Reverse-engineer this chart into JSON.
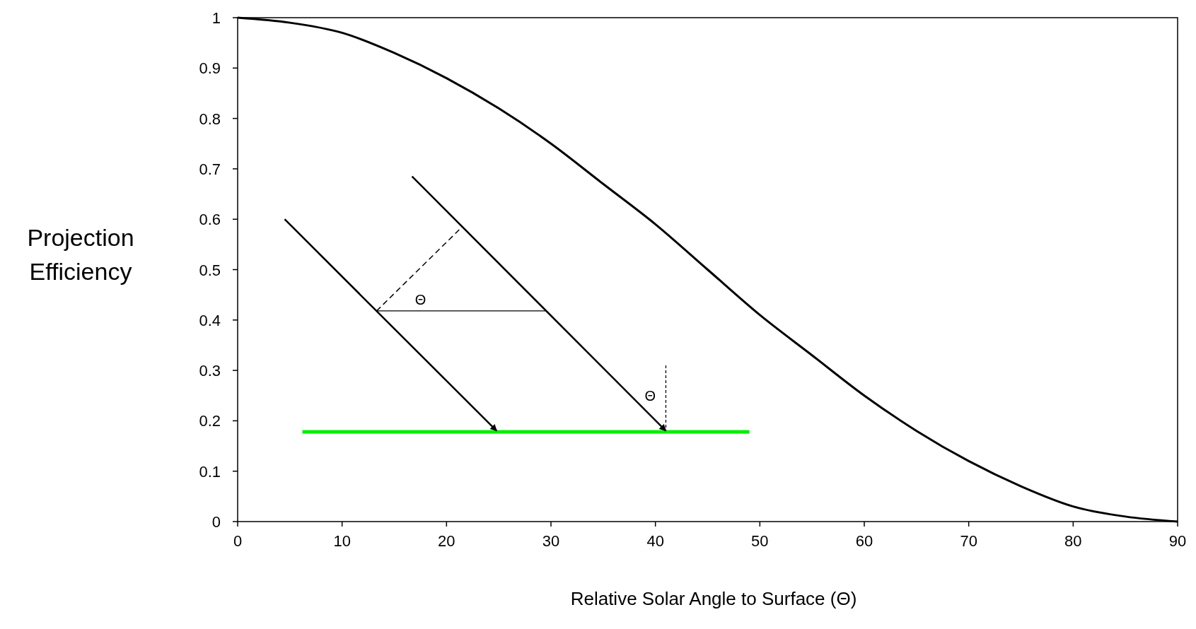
{
  "chart_data": {
    "type": "line",
    "xlabel": "Relative Solar Angle to Surface (Θ)",
    "ylabel": "Projection Efficiency",
    "x": [
      0,
      5,
      10,
      15,
      20,
      25,
      30,
      35,
      40,
      45,
      50,
      55,
      60,
      65,
      70,
      75,
      80,
      85,
      90
    ],
    "series": [
      {
        "color": "#000000",
        "values": [
          1,
          0.99,
          0.97,
          0.93,
          0.88,
          0.82,
          0.75,
          0.67,
          0.59,
          0.5,
          0.41,
          0.33,
          0.25,
          0.18,
          0.12,
          0.07,
          0.03,
          0.01,
          0
        ]
      }
    ],
    "xlim": [
      0,
      90
    ],
    "xticks": [
      0,
      10,
      20,
      30,
      40,
      50,
      60,
      70,
      80,
      90
    ],
    "ylim": [
      0,
      1
    ],
    "yticks": [
      0,
      0.1,
      0.2,
      0.3,
      0.4,
      0.5,
      0.6,
      0.7,
      0.8,
      0.9,
      1
    ],
    "grid": false,
    "marker": "none",
    "line_style": "solid",
    "annotations": [
      "Θ",
      "Θ"
    ]
  }
}
